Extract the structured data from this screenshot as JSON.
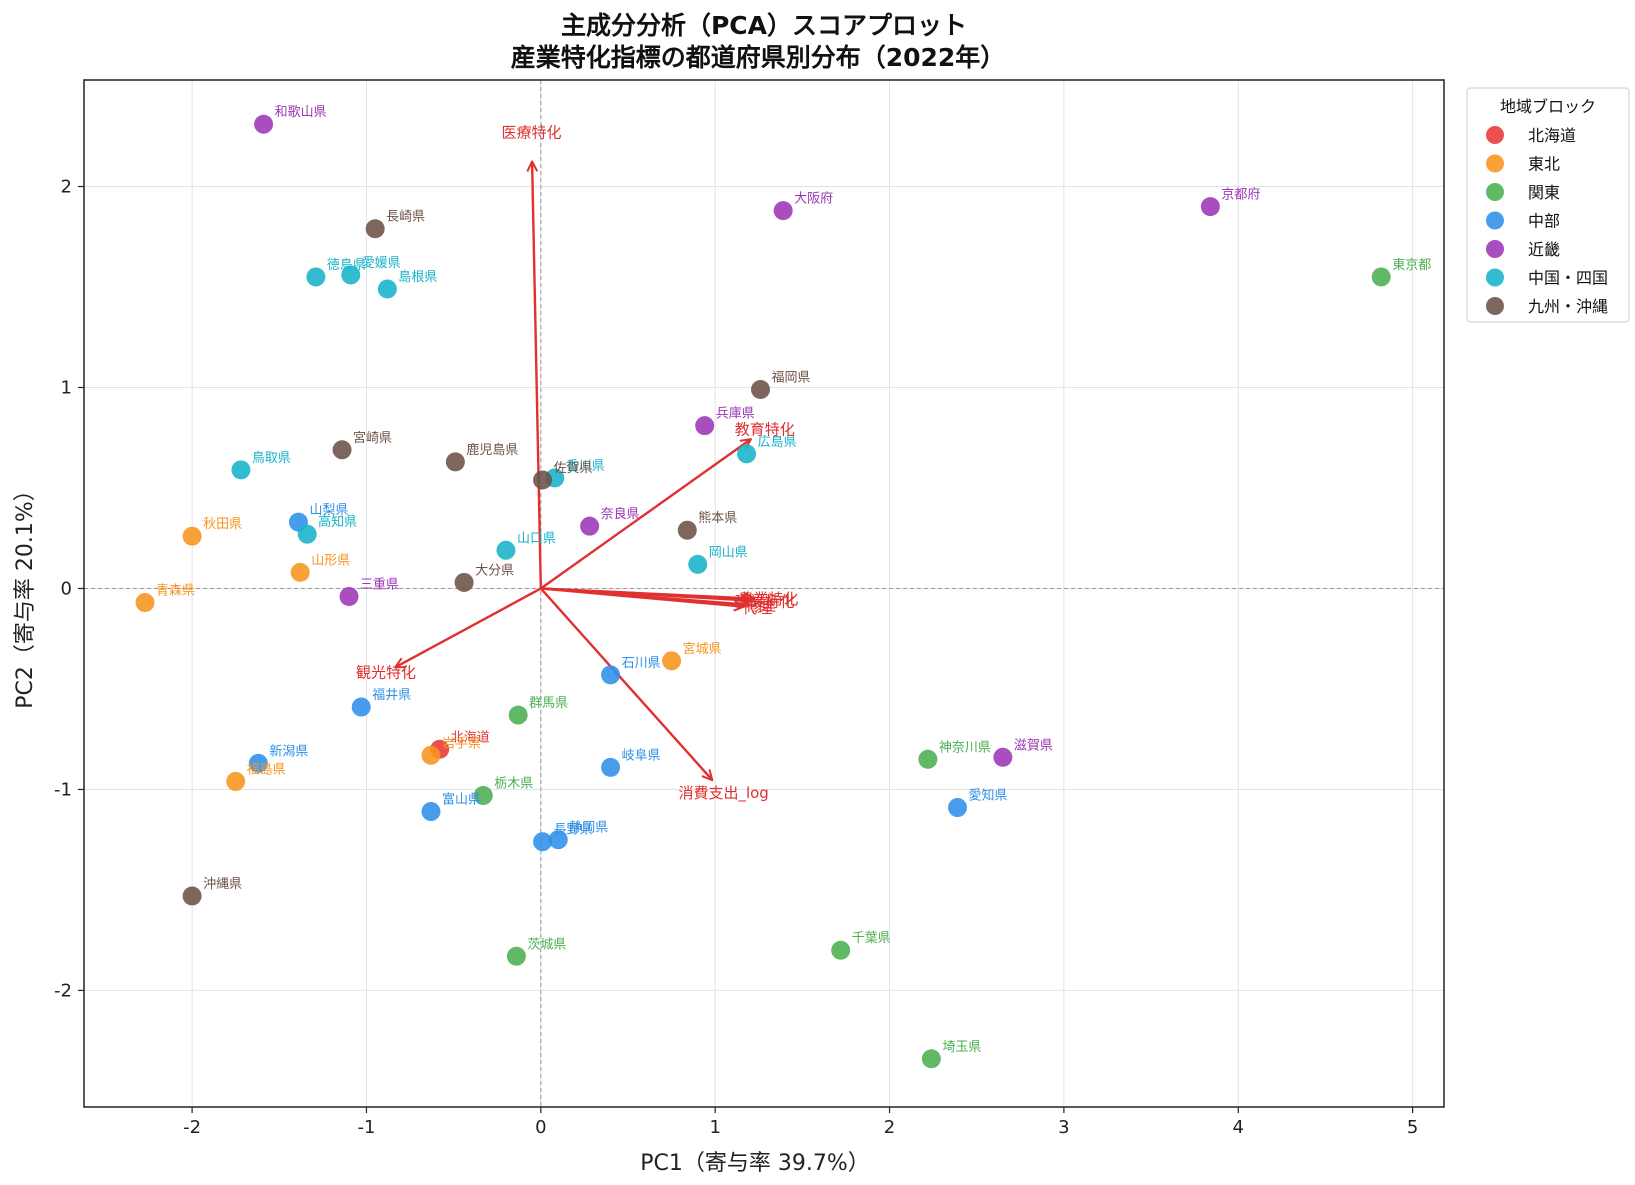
{
  "chart_data": {
    "type": "scatter",
    "title": "主成分分析（PCA）スコアプロット",
    "subtitle": "産業特化指標の都道府県別分布（2022年）",
    "xlabel": "PC1（寄与率 39.7%）",
    "ylabel": "PC2（寄与率 20.1%）",
    "xlim": [
      -2.62,
      5.18
    ],
    "ylim": [
      -2.58,
      2.53
    ],
    "x_ticks": [
      -2,
      -1,
      0,
      1,
      2,
      3,
      4,
      5
    ],
    "y_ticks": [
      -2,
      -1,
      0,
      1,
      2
    ],
    "x_tick_labels": [
      "-2",
      "-1",
      "0",
      "1",
      "2",
      "3",
      "4",
      "5"
    ],
    "y_tick_labels": [
      "-2",
      "-1",
      "0",
      "1",
      "2"
    ],
    "grid": true,
    "legend": {
      "title": "地域ブロック",
      "placement": "outside-top-right",
      "entries": [
        {
          "name": "北海道",
          "color": "#e53935"
        },
        {
          "name": "東北",
          "color": "#f7941d"
        },
        {
          "name": "関東",
          "color": "#4caf50"
        },
        {
          "name": "中部",
          "color": "#2e8fe8"
        },
        {
          "name": "近畿",
          "color": "#9c36b5"
        },
        {
          "name": "中国・四国",
          "color": "#17b3c9"
        },
        {
          "name": "九州・沖縄",
          "color": "#6d5147"
        }
      ]
    },
    "points": [
      {
        "name": "北海道",
        "region": "北海道",
        "x": -0.58,
        "y": -0.8
      },
      {
        "name": "青森県",
        "region": "東北",
        "x": -2.27,
        "y": -0.07
      },
      {
        "name": "岩手県",
        "region": "東北",
        "x": -0.63,
        "y": -0.83
      },
      {
        "name": "宮城県",
        "region": "東北",
        "x": 0.75,
        "y": -0.36
      },
      {
        "name": "秋田県",
        "region": "東北",
        "x": -2.0,
        "y": 0.26
      },
      {
        "name": "山形県",
        "region": "東北",
        "x": -1.38,
        "y": 0.08
      },
      {
        "name": "福島県",
        "region": "東北",
        "x": -1.75,
        "y": -0.96
      },
      {
        "name": "茨城県",
        "region": "関東",
        "x": -0.14,
        "y": -1.83
      },
      {
        "name": "栃木県",
        "region": "関東",
        "x": -0.33,
        "y": -1.03
      },
      {
        "name": "群馬県",
        "region": "関東",
        "x": -0.13,
        "y": -0.63
      },
      {
        "name": "埼玉県",
        "region": "関東",
        "x": 2.24,
        "y": -2.34
      },
      {
        "name": "千葉県",
        "region": "関東",
        "x": 1.72,
        "y": -1.8
      },
      {
        "name": "東京都",
        "region": "関東",
        "x": 4.82,
        "y": 1.55
      },
      {
        "name": "神奈川県",
        "region": "関東",
        "x": 2.22,
        "y": -0.85
      },
      {
        "name": "新潟県",
        "region": "中部",
        "x": -1.62,
        "y": -0.87
      },
      {
        "name": "富山県",
        "region": "中部",
        "x": -0.63,
        "y": -1.11
      },
      {
        "name": "石川県",
        "region": "中部",
        "x": 0.4,
        "y": -0.43
      },
      {
        "name": "福井県",
        "region": "中部",
        "x": -1.03,
        "y": -0.59
      },
      {
        "name": "山梨県",
        "region": "中部",
        "x": -1.39,
        "y": 0.33
      },
      {
        "name": "長野県",
        "region": "中部",
        "x": 0.01,
        "y": -1.26
      },
      {
        "name": "岐阜県",
        "region": "中部",
        "x": 0.4,
        "y": -0.89
      },
      {
        "name": "静岡県",
        "region": "中部",
        "x": 0.1,
        "y": -1.25
      },
      {
        "name": "愛知県",
        "region": "中部",
        "x": 2.39,
        "y": -1.09
      },
      {
        "name": "三重県",
        "region": "近畿",
        "x": -1.1,
        "y": -0.04
      },
      {
        "name": "滋賀県",
        "region": "近畿",
        "x": 2.65,
        "y": -0.84
      },
      {
        "name": "京都府",
        "region": "近畿",
        "x": 3.84,
        "y": 1.9
      },
      {
        "name": "大阪府",
        "region": "近畿",
        "x": 1.39,
        "y": 1.88
      },
      {
        "name": "兵庫県",
        "region": "近畿",
        "x": 0.94,
        "y": 0.81
      },
      {
        "name": "奈良県",
        "region": "近畿",
        "x": 0.28,
        "y": 0.31
      },
      {
        "name": "和歌山県",
        "region": "近畿",
        "x": -1.59,
        "y": 2.31
      },
      {
        "name": "鳥取県",
        "region": "中国・四国",
        "x": -1.72,
        "y": 0.59
      },
      {
        "name": "島根県",
        "region": "中国・四国",
        "x": -0.88,
        "y": 1.49
      },
      {
        "name": "岡山県",
        "region": "中国・四国",
        "x": 0.9,
        "y": 0.12
      },
      {
        "name": "広島県",
        "region": "中国・四国",
        "x": 1.18,
        "y": 0.67
      },
      {
        "name": "山口県",
        "region": "中国・四国",
        "x": -0.2,
        "y": 0.19
      },
      {
        "name": "徳島県",
        "region": "中国・四国",
        "x": -1.29,
        "y": 1.55
      },
      {
        "name": "香川県",
        "region": "中国・四国",
        "x": 0.08,
        "y": 0.55
      },
      {
        "name": "愛媛県",
        "region": "中国・四国",
        "x": -1.09,
        "y": 1.56
      },
      {
        "name": "高知県",
        "region": "中国・四国",
        "x": -1.34,
        "y": 0.27
      },
      {
        "name": "福岡県",
        "region": "九州・沖縄",
        "x": 1.26,
        "y": 0.99
      },
      {
        "name": "佐賀県",
        "region": "九州・沖縄",
        "x": 0.01,
        "y": 0.54
      },
      {
        "name": "長崎県",
        "region": "九州・沖縄",
        "x": -0.95,
        "y": 1.79
      },
      {
        "name": "熊本県",
        "region": "九州・沖縄",
        "x": 0.84,
        "y": 0.29
      },
      {
        "name": "大分県",
        "region": "九州・沖縄",
        "x": -0.44,
        "y": 0.03
      },
      {
        "name": "宮崎県",
        "region": "九州・沖縄",
        "x": -1.14,
        "y": 0.69
      },
      {
        "name": "鹿児島県",
        "region": "九州・沖縄",
        "x": -0.49,
        "y": 0.63
      },
      {
        "name": "沖縄県",
        "region": "九州・沖縄",
        "x": -2.0,
        "y": -1.53
      }
    ],
    "loadings": [
      {
        "name": "医療特化",
        "x": -0.05,
        "y": 2.12
      },
      {
        "name": "教育特化",
        "x": 1.2,
        "y": 0.74
      },
      {
        "name": "建設特化",
        "x": 1.2,
        "y": -0.06
      },
      {
        "name": "農業特化",
        "x": 1.22,
        "y": -0.05
      },
      {
        "name": "修理",
        "x": 1.18,
        "y": -0.08
      },
      {
        "name": "代理",
        "x": 1.16,
        "y": -0.09
      },
      {
        "name": "観光特化",
        "x": -0.83,
        "y": -0.39
      },
      {
        "name": "消費支出_log",
        "x": 0.98,
        "y": -0.95
      }
    ],
    "vector_color": "#e03030"
  }
}
